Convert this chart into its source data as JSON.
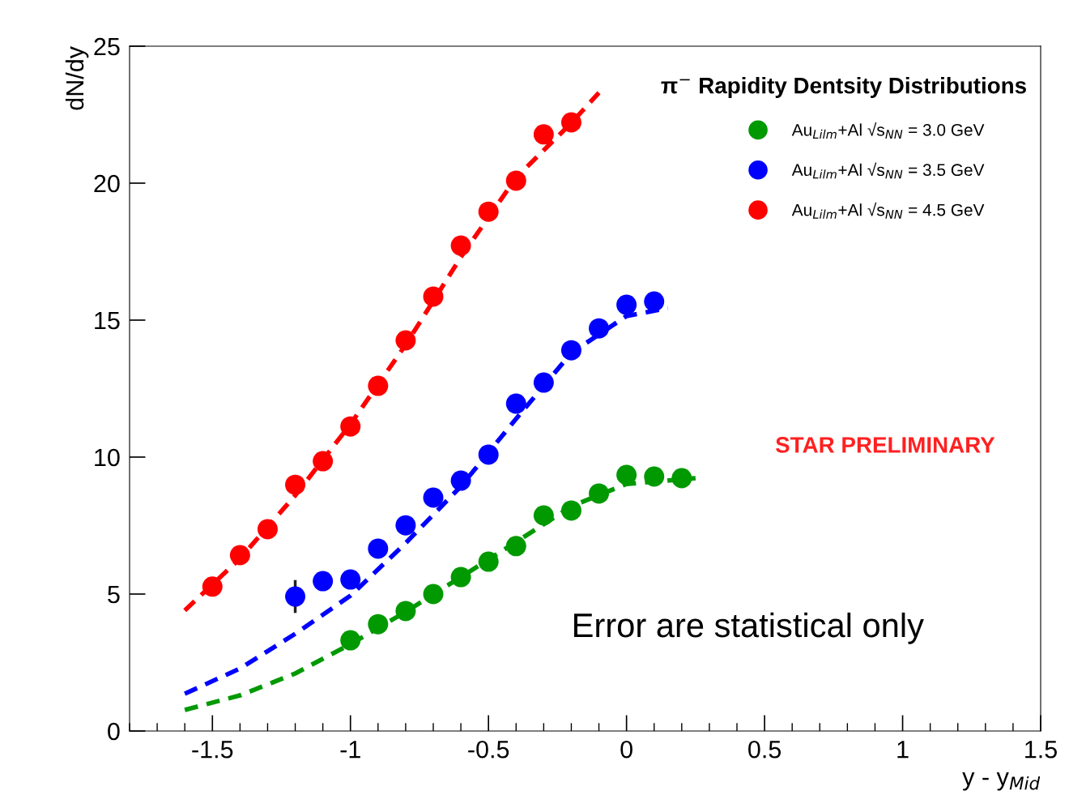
{
  "chart_data": {
    "type": "scatter",
    "title": "π$^{−}$ Rapidity Dentsity Distributions",
    "xlabel": "y - y$_{Mid}$",
    "ylabel": "dN/dy",
    "xlim": [
      -1.8,
      1.5
    ],
    "ylim": [
      0,
      25
    ],
    "xticks": [
      -1.5,
      -1,
      -0.5,
      0,
      0.5,
      1,
      1.5
    ],
    "yticks": [
      0,
      5,
      10,
      15,
      20,
      25
    ],
    "grid": false,
    "legend": "top right",
    "annotations": [
      "STAR PRELIMINARY",
      "Error are statistical only"
    ],
    "series": [
      {
        "name": "Au$_{Lilm}$+Al √s$_{NN}$ = 3.0 GeV",
        "marker": "circle",
        "color": "#009900",
        "x": [
          -1.0,
          -0.9,
          -0.8,
          -0.7,
          -0.6,
          -0.5,
          -0.4,
          -0.3,
          -0.2,
          -0.1,
          0.0,
          0.1,
          0.2
        ],
        "values": [
          3.31,
          3.9,
          4.38,
          5.0,
          5.62,
          6.18,
          6.75,
          7.87,
          8.05,
          8.67,
          9.35,
          9.29,
          9.23
        ]
      },
      {
        "name": "Au$_{Lilm}$+Al √s$_{NN}$ = 3.5 GeV",
        "marker": "circle",
        "color": "#0000ff",
        "x": [
          -1.2,
          -1.1,
          -1.0,
          -0.9,
          -0.8,
          -0.7,
          -0.6,
          -0.5,
          -0.4,
          -0.3,
          -0.2,
          -0.1,
          0.0,
          0.1
        ],
        "values": [
          4.91,
          5.47,
          5.53,
          6.66,
          7.51,
          8.52,
          9.14,
          10.09,
          11.95,
          12.72,
          13.9,
          14.7,
          15.56,
          15.68
        ],
        "errors": [
          0.6,
          null,
          null,
          null,
          null,
          null,
          null,
          null,
          null,
          null,
          null,
          null,
          null,
          null
        ]
      },
      {
        "name": "Au$_{Lilm}$+Al √s$_{NN}$ = 4.5 GeV",
        "marker": "circle",
        "color": "#ff0000",
        "x": [
          -1.5,
          -1.4,
          -1.3,
          -1.2,
          -1.1,
          -1.0,
          -0.9,
          -0.8,
          -0.7,
          -0.6,
          -0.5,
          -0.4,
          -0.3,
          -0.2
        ],
        "values": [
          5.27,
          6.42,
          7.37,
          8.99,
          9.85,
          11.12,
          12.6,
          14.26,
          15.86,
          17.72,
          18.96,
          20.09,
          21.78,
          22.22
        ]
      },
      {
        "type": "line",
        "line_style": "dashed",
        "color": "#009900",
        "x": [
          -1.6,
          -1.4,
          -1.2,
          -1.0,
          -0.8,
          -0.6,
          -0.4,
          -0.2,
          0.0,
          0.25
        ],
        "values": [
          0.77,
          1.3,
          2.1,
          3.17,
          4.35,
          5.62,
          6.9,
          8.2,
          9.02,
          9.23
        ]
      },
      {
        "type": "line",
        "line_style": "dashed",
        "color": "#0000ff",
        "x": [
          -1.6,
          -1.4,
          -1.2,
          -1.0,
          -0.8,
          -0.6,
          -0.4,
          -0.2,
          0.0,
          0.15
        ],
        "values": [
          1.36,
          2.28,
          3.55,
          4.94,
          6.86,
          8.93,
          11.4,
          13.8,
          15.15,
          15.44
        ]
      },
      {
        "type": "line",
        "line_style": "dashed",
        "color": "#ff0000",
        "x": [
          -1.6,
          -1.4,
          -1.2,
          -1.0,
          -0.8,
          -0.6,
          -0.4,
          -0.2,
          -0.1
        ],
        "values": [
          4.4,
          6.3,
          8.6,
          11.2,
          14.1,
          17.3,
          20.2,
          22.2,
          23.3
        ]
      }
    ]
  }
}
